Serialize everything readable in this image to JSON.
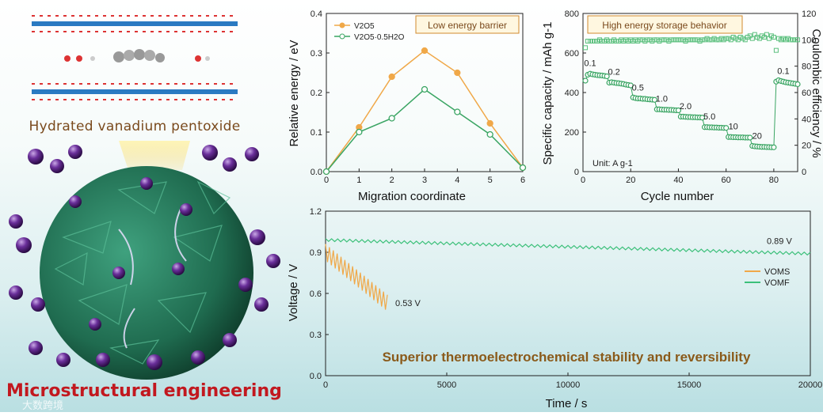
{
  "illustration": {
    "caption": "Hydrated vanadium pentoxide",
    "footer_title": "Microstructural engineering",
    "watermark": "大数跨境"
  },
  "chart_data": [
    {
      "type": "line",
      "xlabel": "Migration coordinate",
      "ylabel": "Relative energy / eV",
      "xlim": [
        0,
        6
      ],
      "ylim": [
        0,
        0.4
      ],
      "xticks": [
        0,
        1,
        2,
        3,
        4,
        5,
        6
      ],
      "yticks": [
        0.0,
        0.1,
        0.2,
        0.3,
        0.4
      ],
      "annotation": "Low energy barrier",
      "legend_position": "top-left",
      "x": [
        0,
        1,
        2,
        3,
        4,
        5,
        6
      ],
      "series": [
        {
          "name": "V2O5",
          "color": "#f0a848",
          "values": [
            0,
            0.112,
            0.24,
            0.306,
            0.25,
            0.122,
            0.01
          ]
        },
        {
          "name": "V2O5·0.5H2O",
          "color": "#3aa563",
          "values": [
            0,
            0.1,
            0.135,
            0.208,
            0.151,
            0.094,
            0.01
          ]
        }
      ]
    },
    {
      "type": "scatter",
      "xlabel": "Cycle number",
      "ylabel": "Specific capacity / mAh g-1",
      "y2label": "Coulombic efficiency / %",
      "xlim": [
        0,
        90
      ],
      "ylim": [
        0,
        800
      ],
      "y2lim": [
        0,
        120
      ],
      "xticks": [
        0,
        20,
        40,
        60,
        80
      ],
      "yticks": [
        0,
        200,
        400,
        600,
        800
      ],
      "y2ticks": [
        0,
        20,
        40,
        60,
        80,
        100,
        120
      ],
      "annotation": "High energy storage behavior",
      "unit_note": "Unit: A g-1",
      "rate_labels": [
        "0.1",
        "0.2",
        "0.5",
        "1.0",
        "2.0",
        "5.0",
        "10",
        "20",
        "0.1"
      ],
      "capacity_points": [
        {
          "x": 1,
          "y": 460
        },
        {
          "x": 2,
          "y": 490
        },
        {
          "x": 3,
          "y": 495
        },
        {
          "x": 4,
          "y": 492
        },
        {
          "x": 5,
          "y": 490
        },
        {
          "x": 6,
          "y": 488
        },
        {
          "x": 7,
          "y": 487
        },
        {
          "x": 8,
          "y": 486
        },
        {
          "x": 9,
          "y": 484
        },
        {
          "x": 10,
          "y": 482
        },
        {
          "x": 11,
          "y": 450
        },
        {
          "x": 12,
          "y": 452
        },
        {
          "x": 13,
          "y": 450
        },
        {
          "x": 14,
          "y": 448
        },
        {
          "x": 15,
          "y": 447
        },
        {
          "x": 16,
          "y": 445
        },
        {
          "x": 17,
          "y": 443
        },
        {
          "x": 18,
          "y": 440
        },
        {
          "x": 19,
          "y": 438
        },
        {
          "x": 20,
          "y": 436
        },
        {
          "x": 21,
          "y": 375
        },
        {
          "x": 22,
          "y": 372
        },
        {
          "x": 23,
          "y": 370
        },
        {
          "x": 24,
          "y": 370
        },
        {
          "x": 25,
          "y": 368
        },
        {
          "x": 26,
          "y": 368
        },
        {
          "x": 27,
          "y": 366
        },
        {
          "x": 28,
          "y": 365
        },
        {
          "x": 29,
          "y": 364
        },
        {
          "x": 30,
          "y": 363
        },
        {
          "x": 31,
          "y": 315
        },
        {
          "x": 32,
          "y": 315
        },
        {
          "x": 33,
          "y": 314
        },
        {
          "x": 34,
          "y": 313
        },
        {
          "x": 35,
          "y": 313
        },
        {
          "x": 36,
          "y": 312
        },
        {
          "x": 37,
          "y": 312
        },
        {
          "x": 38,
          "y": 311
        },
        {
          "x": 39,
          "y": 310
        },
        {
          "x": 40,
          "y": 310
        },
        {
          "x": 41,
          "y": 278
        },
        {
          "x": 42,
          "y": 278
        },
        {
          "x": 43,
          "y": 277
        },
        {
          "x": 44,
          "y": 276
        },
        {
          "x": 45,
          "y": 276
        },
        {
          "x": 46,
          "y": 275
        },
        {
          "x": 47,
          "y": 275
        },
        {
          "x": 48,
          "y": 274
        },
        {
          "x": 49,
          "y": 274
        },
        {
          "x": 50,
          "y": 273
        },
        {
          "x": 51,
          "y": 225
        },
        {
          "x": 52,
          "y": 225
        },
        {
          "x": 53,
          "y": 224
        },
        {
          "x": 54,
          "y": 224
        },
        {
          "x": 55,
          "y": 223
        },
        {
          "x": 56,
          "y": 223
        },
        {
          "x": 57,
          "y": 222
        },
        {
          "x": 58,
          "y": 222
        },
        {
          "x": 59,
          "y": 221
        },
        {
          "x": 60,
          "y": 221
        },
        {
          "x": 61,
          "y": 175
        },
        {
          "x": 62,
          "y": 175
        },
        {
          "x": 63,
          "y": 174
        },
        {
          "x": 64,
          "y": 174
        },
        {
          "x": 65,
          "y": 173
        },
        {
          "x": 66,
          "y": 173
        },
        {
          "x": 67,
          "y": 173
        },
        {
          "x": 68,
          "y": 172
        },
        {
          "x": 69,
          "y": 172
        },
        {
          "x": 70,
          "y": 172
        },
        {
          "x": 71,
          "y": 130
        },
        {
          "x": 72,
          "y": 128
        },
        {
          "x": 73,
          "y": 127
        },
        {
          "x": 74,
          "y": 126
        },
        {
          "x": 75,
          "y": 125
        },
        {
          "x": 76,
          "y": 125
        },
        {
          "x": 77,
          "y": 124
        },
        {
          "x": 78,
          "y": 124
        },
        {
          "x": 79,
          "y": 123
        },
        {
          "x": 80,
          "y": 123
        },
        {
          "x": 81,
          "y": 455
        },
        {
          "x": 82,
          "y": 462
        },
        {
          "x": 83,
          "y": 458
        },
        {
          "x": 84,
          "y": 455
        },
        {
          "x": 85,
          "y": 452
        },
        {
          "x": 86,
          "y": 450
        },
        {
          "x": 87,
          "y": 448
        },
        {
          "x": 88,
          "y": 446
        },
        {
          "x": 89,
          "y": 444
        },
        {
          "x": 90,
          "y": 442
        }
      ],
      "efficiency_points": [
        {
          "x": 1,
          "y": 94
        },
        {
          "x": 2,
          "y": 99
        },
        {
          "x": 3,
          "y": 99
        },
        {
          "x": 4,
          "y": 99
        },
        {
          "x": 5,
          "y": 99
        },
        {
          "x": 6,
          "y": 99
        },
        {
          "x": 7,
          "y": 100
        },
        {
          "x": 8,
          "y": 99
        },
        {
          "x": 9,
          "y": 99
        },
        {
          "x": 10,
          "y": 100
        },
        {
          "x": 11,
          "y": 99
        },
        {
          "x": 12,
          "y": 99
        },
        {
          "x": 13,
          "y": 100
        },
        {
          "x": 14,
          "y": 99
        },
        {
          "x": 15,
          "y": 99
        },
        {
          "x": 16,
          "y": 100
        },
        {
          "x": 17,
          "y": 99
        },
        {
          "x": 18,
          "y": 100
        },
        {
          "x": 19,
          "y": 99
        },
        {
          "x": 20,
          "y": 100
        },
        {
          "x": 21,
          "y": 99
        },
        {
          "x": 22,
          "y": 100
        },
        {
          "x": 23,
          "y": 99
        },
        {
          "x": 24,
          "y": 100
        },
        {
          "x": 25,
          "y": 100
        },
        {
          "x": 26,
          "y": 99
        },
        {
          "x": 27,
          "y": 100
        },
        {
          "x": 28,
          "y": 100
        },
        {
          "x": 29,
          "y": 99
        },
        {
          "x": 30,
          "y": 100
        },
        {
          "x": 31,
          "y": 100
        },
        {
          "x": 32,
          "y": 99
        },
        {
          "x": 33,
          "y": 100
        },
        {
          "x": 34,
          "y": 100
        },
        {
          "x": 35,
          "y": 100
        },
        {
          "x": 36,
          "y": 99
        },
        {
          "x": 37,
          "y": 100
        },
        {
          "x": 38,
          "y": 100
        },
        {
          "x": 39,
          "y": 100
        },
        {
          "x": 40,
          "y": 100
        },
        {
          "x": 41,
          "y": 100
        },
        {
          "x": 42,
          "y": 100
        },
        {
          "x": 43,
          "y": 99
        },
        {
          "x": 44,
          "y": 100
        },
        {
          "x": 45,
          "y": 100
        },
        {
          "x": 46,
          "y": 100
        },
        {
          "x": 47,
          "y": 100
        },
        {
          "x": 48,
          "y": 100
        },
        {
          "x": 49,
          "y": 99
        },
        {
          "x": 50,
          "y": 100
        },
        {
          "x": 51,
          "y": 100
        },
        {
          "x": 52,
          "y": 101
        },
        {
          "x": 53,
          "y": 100
        },
        {
          "x": 54,
          "y": 100
        },
        {
          "x": 55,
          "y": 101
        },
        {
          "x": 56,
          "y": 100
        },
        {
          "x": 57,
          "y": 100
        },
        {
          "x": 58,
          "y": 101
        },
        {
          "x": 59,
          "y": 100
        },
        {
          "x": 60,
          "y": 101
        },
        {
          "x": 61,
          "y": 101
        },
        {
          "x": 62,
          "y": 100
        },
        {
          "x": 63,
          "y": 102
        },
        {
          "x": 64,
          "y": 101
        },
        {
          "x": 65,
          "y": 100
        },
        {
          "x": 66,
          "y": 102
        },
        {
          "x": 67,
          "y": 101
        },
        {
          "x": 68,
          "y": 100
        },
        {
          "x": 69,
          "y": 102
        },
        {
          "x": 70,
          "y": 103
        },
        {
          "x": 71,
          "y": 101
        },
        {
          "x": 72,
          "y": 104
        },
        {
          "x": 73,
          "y": 102
        },
        {
          "x": 74,
          "y": 101
        },
        {
          "x": 75,
          "y": 103
        },
        {
          "x": 76,
          "y": 102
        },
        {
          "x": 77,
          "y": 104
        },
        {
          "x": 78,
          "y": 101
        },
        {
          "x": 79,
          "y": 103
        },
        {
          "x": 80,
          "y": 102
        },
        {
          "x": 81,
          "y": 92
        },
        {
          "x": 82,
          "y": 101
        },
        {
          "x": 83,
          "y": 100
        },
        {
          "x": 84,
          "y": 101
        },
        {
          "x": 85,
          "y": 100
        },
        {
          "x": 86,
          "y": 101
        },
        {
          "x": 87,
          "y": 100
        },
        {
          "x": 88,
          "y": 100
        },
        {
          "x": 89,
          "y": 100
        },
        {
          "x": 90,
          "y": 100
        }
      ]
    },
    {
      "type": "line",
      "xlabel": "Time / s",
      "ylabel": "Voltage / V",
      "xlim": [
        0,
        20000
      ],
      "ylim": [
        0,
        1.2
      ],
      "xticks": [
        0,
        5000,
        10000,
        15000,
        20000
      ],
      "yticks": [
        0.0,
        0.3,
        0.6,
        0.9,
        1.2
      ],
      "legend_position": "right",
      "annotation": "Superior thermoelectrochemical stability and reversibility",
      "series": [
        {
          "name": "VOMS",
          "color": "#f0a848",
          "start": 0.9,
          "end": 0.53,
          "amplitude": 0.12,
          "t_end": 2550,
          "cycles": 16,
          "end_label": "0.53 V"
        },
        {
          "name": "VOMF",
          "color": "#3cc07a",
          "start": 0.99,
          "end": 0.89,
          "amplitude": 0.02,
          "t_end": 20000,
          "cycles": 80,
          "end_label": "0.89 V"
        }
      ]
    }
  ]
}
